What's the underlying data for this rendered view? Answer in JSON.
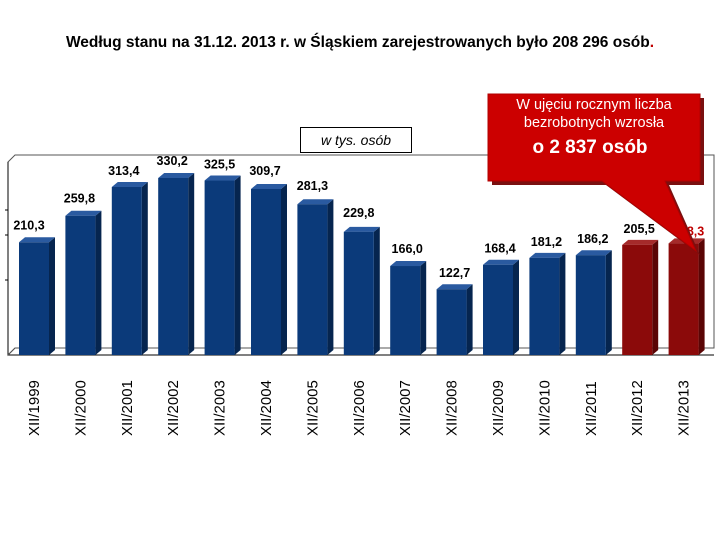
{
  "headline": {
    "text": "Według stanu na 31.12. 2013 r. w Śląskiem zarejestrowanych było  208 296 osób",
    "trailing_dot": "."
  },
  "unit_label": "w tys. osób",
  "callout": {
    "line1": "W ujęciu rocznym liczba",
    "line2": "bezrobotnych wzrosła",
    "line3": "o  2 837  osób",
    "fill_color": "#cc0000"
  },
  "colors": {
    "bar_blue": "#0b3a7a",
    "bar_blue_side": "#06254f",
    "bar_red": "#8b0a0a",
    "bar_red_side": "#5a0505",
    "highlight_label": "#c00000"
  },
  "chart_data": {
    "type": "bar",
    "categories": [
      "XII/1999",
      "XII/2000",
      "XII/2001",
      "XII/2002",
      "XII/2003",
      "XII/2004",
      "XII/2005",
      "XII/2006",
      "XII/2007",
      "XII/2008",
      "XII/2009",
      "XII/2010",
      "XII/2011",
      "XII/2012",
      "XII/2013"
    ],
    "values": [
      210.3,
      259.8,
      313.4,
      330.2,
      325.5,
      309.7,
      281.3,
      229.8,
      166.0,
      122.7,
      168.4,
      181.2,
      186.2,
      205.5,
      208.3
    ],
    "value_labels": [
      "210,3",
      "259,8",
      "313,4",
      "330,2",
      "325,5",
      "309,7",
      "281,3",
      "229,8",
      "166,0",
      "122,7",
      "168,4",
      "181,2",
      "186,2",
      "205,5",
      "208,3"
    ],
    "highlighted": [
      "XII/2012",
      "XII/2013"
    ],
    "ylim": [
      0,
      380
    ],
    "title": "",
    "xlabel": "",
    "ylabel": ""
  }
}
